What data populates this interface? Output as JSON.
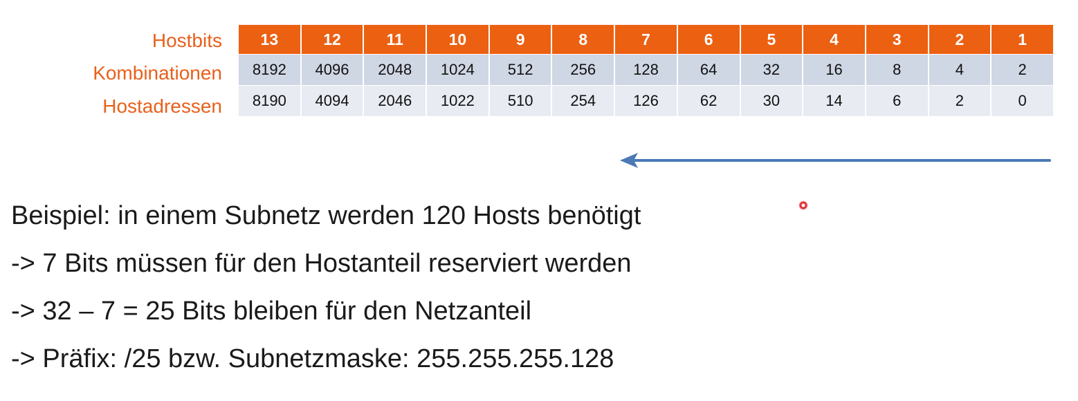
{
  "table": {
    "row_labels": {
      "hostbits": "Hostbits",
      "kombinationen": "Kombinationen",
      "hostadressen": "Hostadressen"
    },
    "hostbits": [
      "13",
      "12",
      "11",
      "10",
      "9",
      "8",
      "7",
      "6",
      "5",
      "4",
      "3",
      "2",
      "1"
    ],
    "kombinationen": [
      "8192",
      "4096",
      "2048",
      "1024",
      "512",
      "256",
      "128",
      "64",
      "32",
      "16",
      "8",
      "4",
      "2"
    ],
    "hostadressen": [
      "8190",
      "4094",
      "2046",
      "1022",
      "510",
      "254",
      "126",
      "62",
      "30",
      "14",
      "6",
      "2",
      "0"
    ],
    "colors": {
      "accent": "#ec6012",
      "label": "#e8601c",
      "row_kombinationen": "#cfd6e4",
      "row_hostadressen": "#e8ebf2"
    }
  },
  "arrow": {
    "direction": "left",
    "color": "#4a7ab5"
  },
  "example": {
    "line1": "Beispiel: in einem Subnetz werden 120 Hosts benötigt",
    "line2": "-> 7 Bits müssen für den Hostanteil reserviert werden",
    "line3": "-> 32 – 7 = 25 Bits bleiben für den Netzanteil",
    "line4": "-> Präfix: /25 bzw. Subnetzmaske: 255.255.255.128"
  },
  "cursor": {
    "icon": "cursor-dot-icon",
    "color": "#e0303a"
  }
}
